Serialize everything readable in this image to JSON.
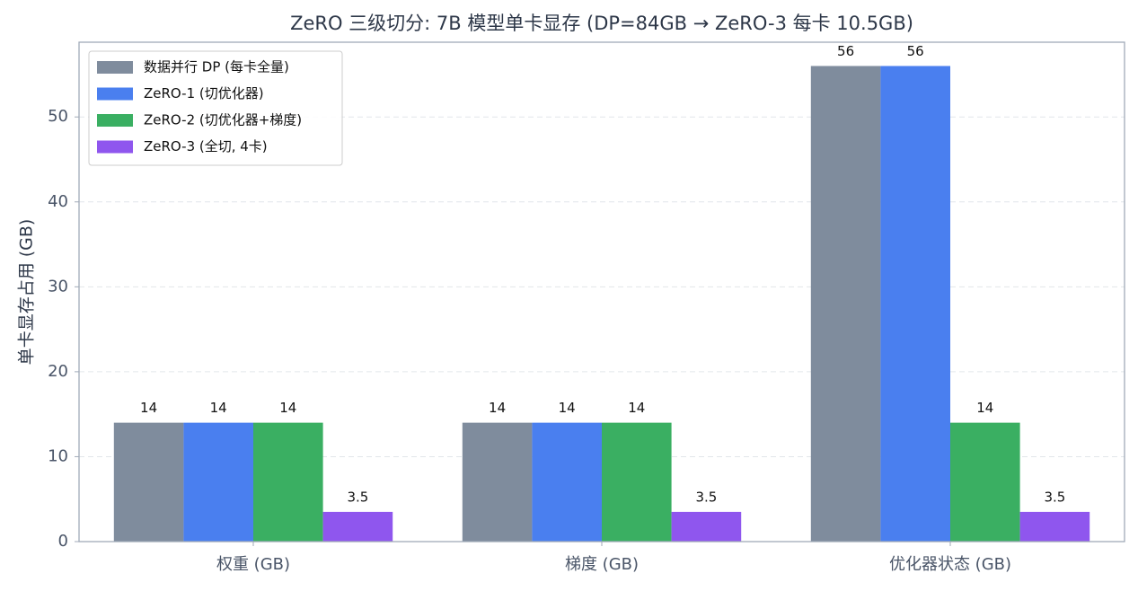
{
  "chart_data": {
    "type": "bar",
    "title": "ZeRO 三级切分: 7B 模型单卡显存 (DP=84GB → ZeRO-3 每卡 10.5GB)",
    "y_label": "单卡显存占用 (GB)",
    "categories": [
      "权重 (GB)",
      "梯度 (GB)",
      "优化器状态 (GB)"
    ],
    "series": [
      {
        "name": "数据并行 DP (每卡全量)",
        "color": "#7f8c9d",
        "values": [
          14,
          14,
          56
        ]
      },
      {
        "name": "ZeRO-1 (切优化器)",
        "color": "#4a7fef",
        "values": [
          14,
          14,
          56
        ]
      },
      {
        "name": "ZeRO-2 (切优化器+梯度)",
        "color": "#3aaf62",
        "values": [
          14,
          14,
          14
        ]
      },
      {
        "name": "ZeRO-3 (全切, 4卡)",
        "color": "#8f56ee",
        "values": [
          3.5,
          3.5,
          3.5
        ]
      }
    ],
    "ylim": [
      0,
      58.8
    ],
    "yticks": [
      0,
      10,
      20,
      30,
      40,
      50
    ],
    "grid": true,
    "legend": "upper left"
  }
}
